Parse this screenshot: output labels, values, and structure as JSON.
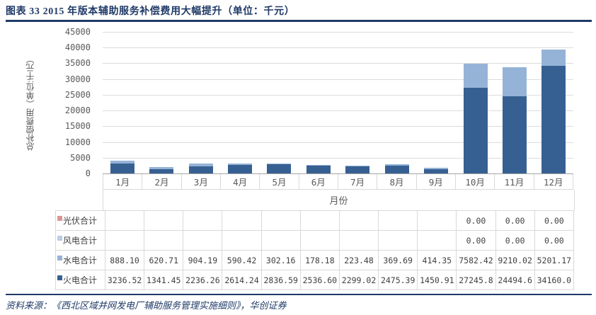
{
  "page": {
    "title": "图表 33  2015 年版本辅助服务补偿费用大幅提升（单位：千元）",
    "source": "资料来源：《西北区域并网发电厂辅助服务管理实施细则》，华创证券",
    "accent_color": "#1F3A67"
  },
  "chart_data": {
    "type": "bar",
    "stacked": true,
    "title": "2015 年版本辅助服务补偿费用大幅提升（单位：千元）",
    "xlabel": "月份",
    "ylabel": "总补偿费用（单位:千元）",
    "ylim": [
      0,
      45000
    ],
    "ytick_interval": 5000,
    "ytick_labels": [
      "45000",
      "40000",
      "35000",
      "30000",
      "25000",
      "20000",
      "15000",
      "10000",
      "5000",
      "0"
    ],
    "grid": true,
    "legend_position": "data-table-left",
    "categories": [
      "1月",
      "2月",
      "3月",
      "4月",
      "5月",
      "6月",
      "7月",
      "8月",
      "9月",
      "10月",
      "11月",
      "12月"
    ],
    "series": [
      {
        "name": "光伏合计",
        "color": "#DA9694",
        "values": [
          null,
          null,
          null,
          null,
          null,
          null,
          null,
          null,
          null,
          0,
          0,
          0
        ],
        "display": [
          "",
          "",
          "",
          "",
          "",
          "",
          "",
          "",
          "",
          "0.00",
          "0.00",
          "0.00"
        ]
      },
      {
        "name": "风电合计",
        "color": "#B9CDE5",
        "values": [
          null,
          null,
          null,
          null,
          null,
          null,
          null,
          null,
          null,
          0,
          0,
          0
        ],
        "display": [
          "",
          "",
          "",
          "",
          "",
          "",
          "",
          "",
          "",
          "0.00",
          "0.00",
          "0.00"
        ]
      },
      {
        "name": "水电合计",
        "color": "#95B3D7",
        "values": [
          888.1,
          620.71,
          904.19,
          590.42,
          302.16,
          178.18,
          223.48,
          369.69,
          414.35,
          7582.42,
          9210.02,
          5201.17
        ],
        "display": [
          "888.10",
          "620.71",
          "904.19",
          "590.42",
          "302.16",
          "178.18",
          "223.48",
          "369.69",
          "414.35",
          "7582.42",
          "9210.02",
          "5201.17"
        ]
      },
      {
        "name": "火电合计",
        "color": "#376092",
        "values": [
          3236.52,
          1341.45,
          2236.26,
          2614.24,
          2836.59,
          2536.6,
          2299.02,
          2475.39,
          1450.91,
          27245.8,
          24494.6,
          34160.0
        ],
        "display": [
          "3236.52",
          "1341.45",
          "2236.26",
          "2614.24",
          "2836.59",
          "2536.60",
          "2299.02",
          "2475.39",
          "1450.91",
          "27245.8",
          "24494.6",
          "34160.0"
        ]
      }
    ]
  }
}
